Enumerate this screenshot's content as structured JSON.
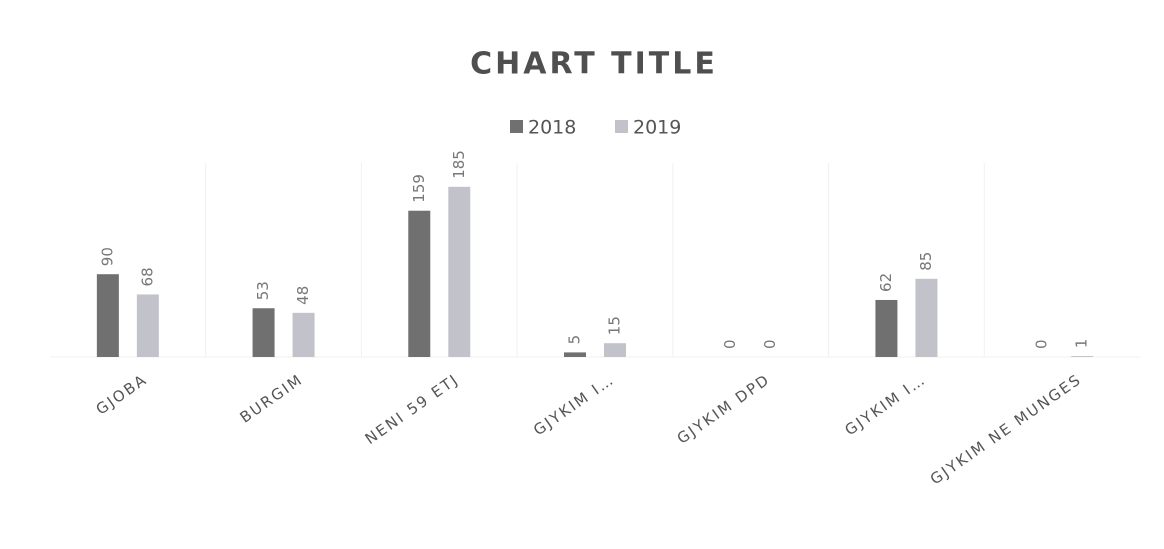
{
  "chart_data": {
    "type": "bar",
    "title": "CHART TITLE",
    "categories": [
      "GJOBA",
      "BURGIM",
      "NENI 59 ETJ",
      "GJYKIM I…",
      "GJYKIM DPD",
      "GJYKIM I…",
      "GJYKIM NE MUNGES"
    ],
    "series": [
      {
        "name": "2018",
        "color": "#707070",
        "values": [
          90,
          53,
          159,
          5,
          0,
          62,
          0
        ]
      },
      {
        "name": "2019",
        "color": "#c2c2ca",
        "values": [
          68,
          48,
          185,
          15,
          0,
          85,
          1
        ]
      }
    ],
    "ylim": [
      0,
      200
    ],
    "legend": "top",
    "grid": true
  }
}
